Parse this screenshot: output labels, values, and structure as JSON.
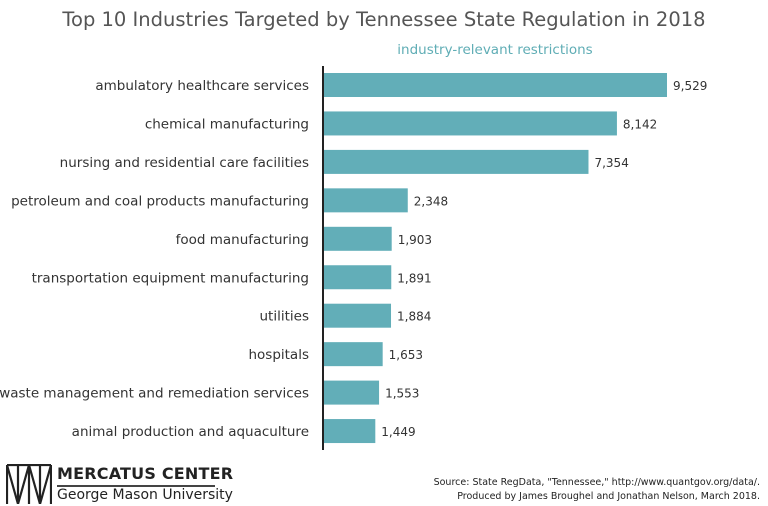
{
  "chart_data": {
    "type": "bar",
    "orientation": "horizontal",
    "title": "Top 10 Industries Targeted by Tennessee State Regulation in 2018",
    "series_label": "industry-relevant restrictions",
    "categories": [
      "ambulatory healthcare services",
      "chemical manufacturing",
      "nursing and residential care facilities",
      "petroleum and coal products manufacturing",
      "food manufacturing",
      "transportation equipment manufacturing",
      "utilities",
      "hospitals",
      "waste management and remediation services",
      "animal production and aquaculture"
    ],
    "values": [
      9529,
      8142,
      7354,
      2348,
      1903,
      1891,
      1884,
      1653,
      1553,
      1449
    ],
    "value_labels": [
      "9,529",
      "8,142",
      "7,354",
      "2,348",
      "1,903",
      "1,891",
      "1,884",
      "1,653",
      "1,553",
      "1,449"
    ],
    "xlim": [
      0,
      9529
    ],
    "grid": false,
    "legend": "none",
    "bar_color": "#62aeb8"
  },
  "footer": {
    "logo_line1": "MERCATUS CENTER",
    "logo_line2": "George Mason University",
    "source_line1": "Source: State RegData, \"Tennessee,\" http://www.quantgov.org/data/.",
    "source_line2": "Produced by James Broughel and Jonathan Nelson, March 2018."
  }
}
